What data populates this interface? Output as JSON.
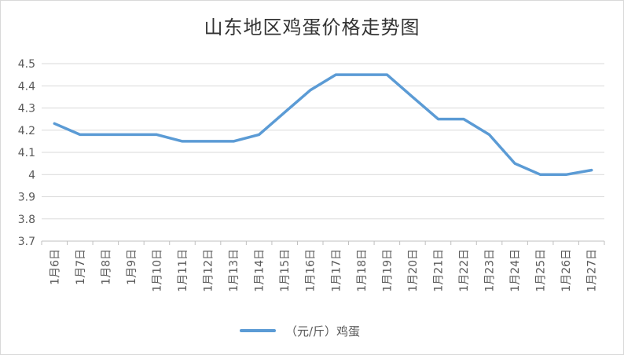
{
  "chart_data": {
    "type": "line",
    "title": "山东地区鸡蛋价格走势图",
    "categories": [
      "1月6日",
      "1月7日",
      "1月8日",
      "1月9日",
      "1月10日",
      "1月11日",
      "1月12日",
      "1月13日",
      "1月14日",
      "1月15日",
      "1月16日",
      "1月17日",
      "1月18日",
      "1月19日",
      "1月20日",
      "1月21日",
      "1月22日",
      "1月23日",
      "1月24日",
      "1月25日",
      "1月26日",
      "1月27日"
    ],
    "series": [
      {
        "name": "（元/斤）鸡蛋",
        "color": "#5b9bd5",
        "values": [
          4.23,
          4.18,
          4.18,
          4.18,
          4.18,
          4.15,
          4.15,
          4.15,
          4.18,
          4.28,
          4.38,
          4.45,
          4.45,
          4.45,
          4.35,
          4.25,
          4.25,
          4.18,
          4.05,
          4.0,
          4.0,
          4.02
        ]
      }
    ],
    "yticks": [
      "3.7",
      "3.8",
      "3.9",
      "4",
      "4.1",
      "4.2",
      "4.3",
      "4.4",
      "4.5"
    ],
    "ylim": [
      3.7,
      4.5
    ],
    "grid": true,
    "legend": "bottom"
  }
}
